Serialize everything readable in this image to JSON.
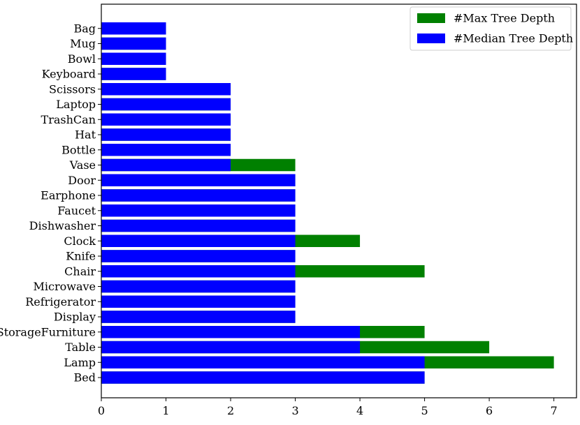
{
  "chart_data": {
    "type": "bar",
    "orientation": "horizontal",
    "stacked": false,
    "categories": [
      "Bed",
      "Lamp",
      "Table",
      "StorageFurniture",
      "Display",
      "Refrigerator",
      "Microwave",
      "Chair",
      "Knife",
      "Clock",
      "Dishwasher",
      "Faucet",
      "Earphone",
      "Door",
      "Vase",
      "Bottle",
      "Hat",
      "TrashCan",
      "Laptop",
      "Scissors",
      "Keyboard",
      "Bowl",
      "Mug",
      "Bag"
    ],
    "series": [
      {
        "name": "#Max Tree Depth",
        "color": "#008000",
        "values": [
          5,
          7,
          6,
          5,
          3,
          3,
          3,
          5,
          3,
          4,
          3,
          3,
          3,
          3,
          3,
          2,
          2,
          2,
          2,
          2,
          1,
          1,
          1,
          1
        ]
      },
      {
        "name": "#Median Tree Depth",
        "color": "#0000ff",
        "values": [
          5,
          5,
          4,
          4,
          3,
          3,
          3,
          3,
          3,
          3,
          3,
          3,
          3,
          3,
          2,
          2,
          2,
          2,
          2,
          2,
          1,
          1,
          1,
          1
        ]
      }
    ],
    "xticks": [
      0,
      1,
      2,
      3,
      4,
      5,
      6,
      7
    ],
    "xlim": [
      0,
      7.35
    ],
    "title": "",
    "xlabel": "",
    "ylabel": "",
    "grid": false,
    "legend_position": "top-right"
  }
}
